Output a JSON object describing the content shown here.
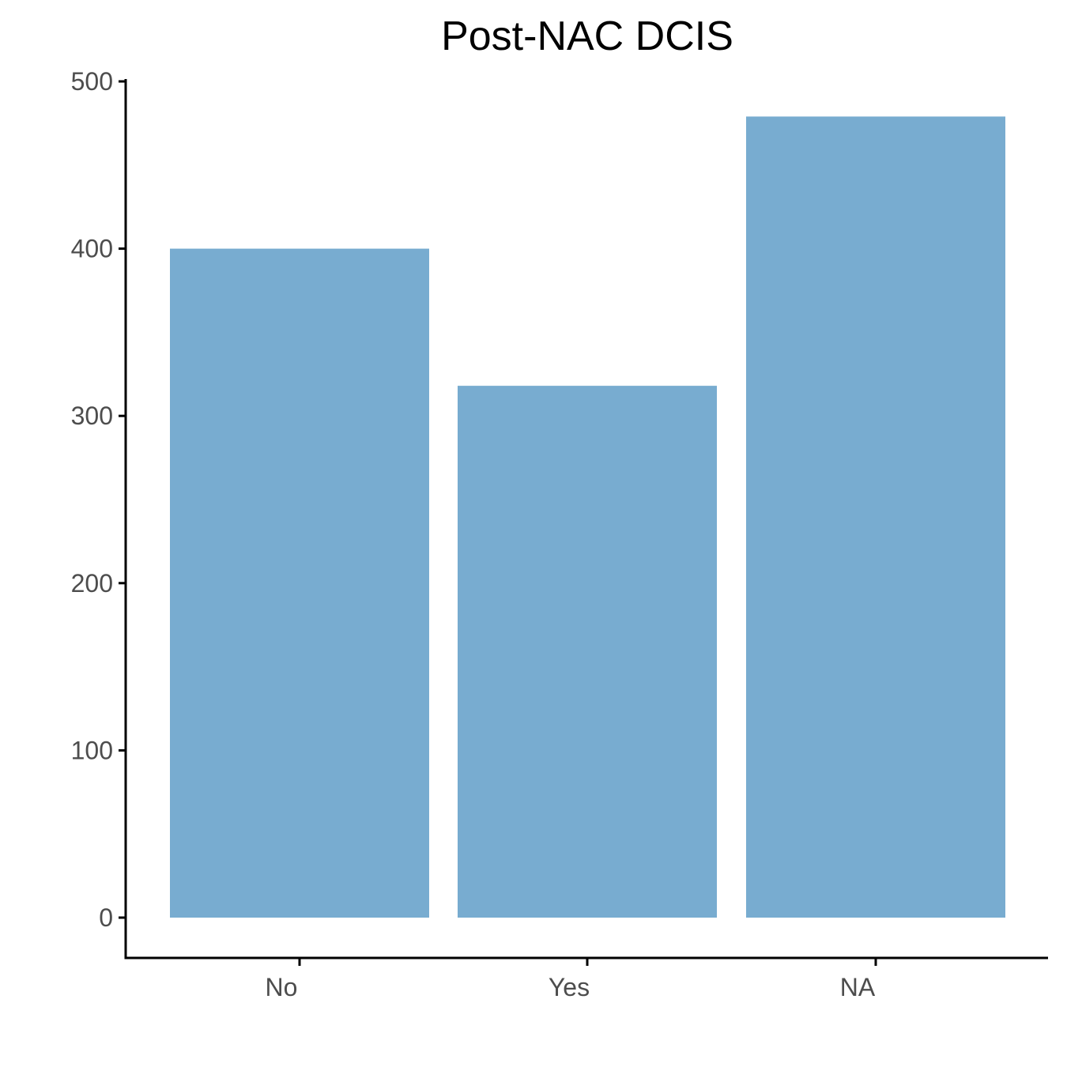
{
  "chart_data": {
    "type": "bar",
    "title": "Post-NAC DCIS",
    "xlabel": "",
    "ylabel": "",
    "categories": [
      "No",
      "Yes",
      "NA"
    ],
    "values": [
      400,
      318,
      479
    ],
    "ylim": [
      0,
      500
    ],
    "yticks": [
      0,
      100,
      200,
      300,
      400,
      500
    ],
    "bar_color": "#78acd0",
    "grid": false,
    "legend": "none"
  }
}
